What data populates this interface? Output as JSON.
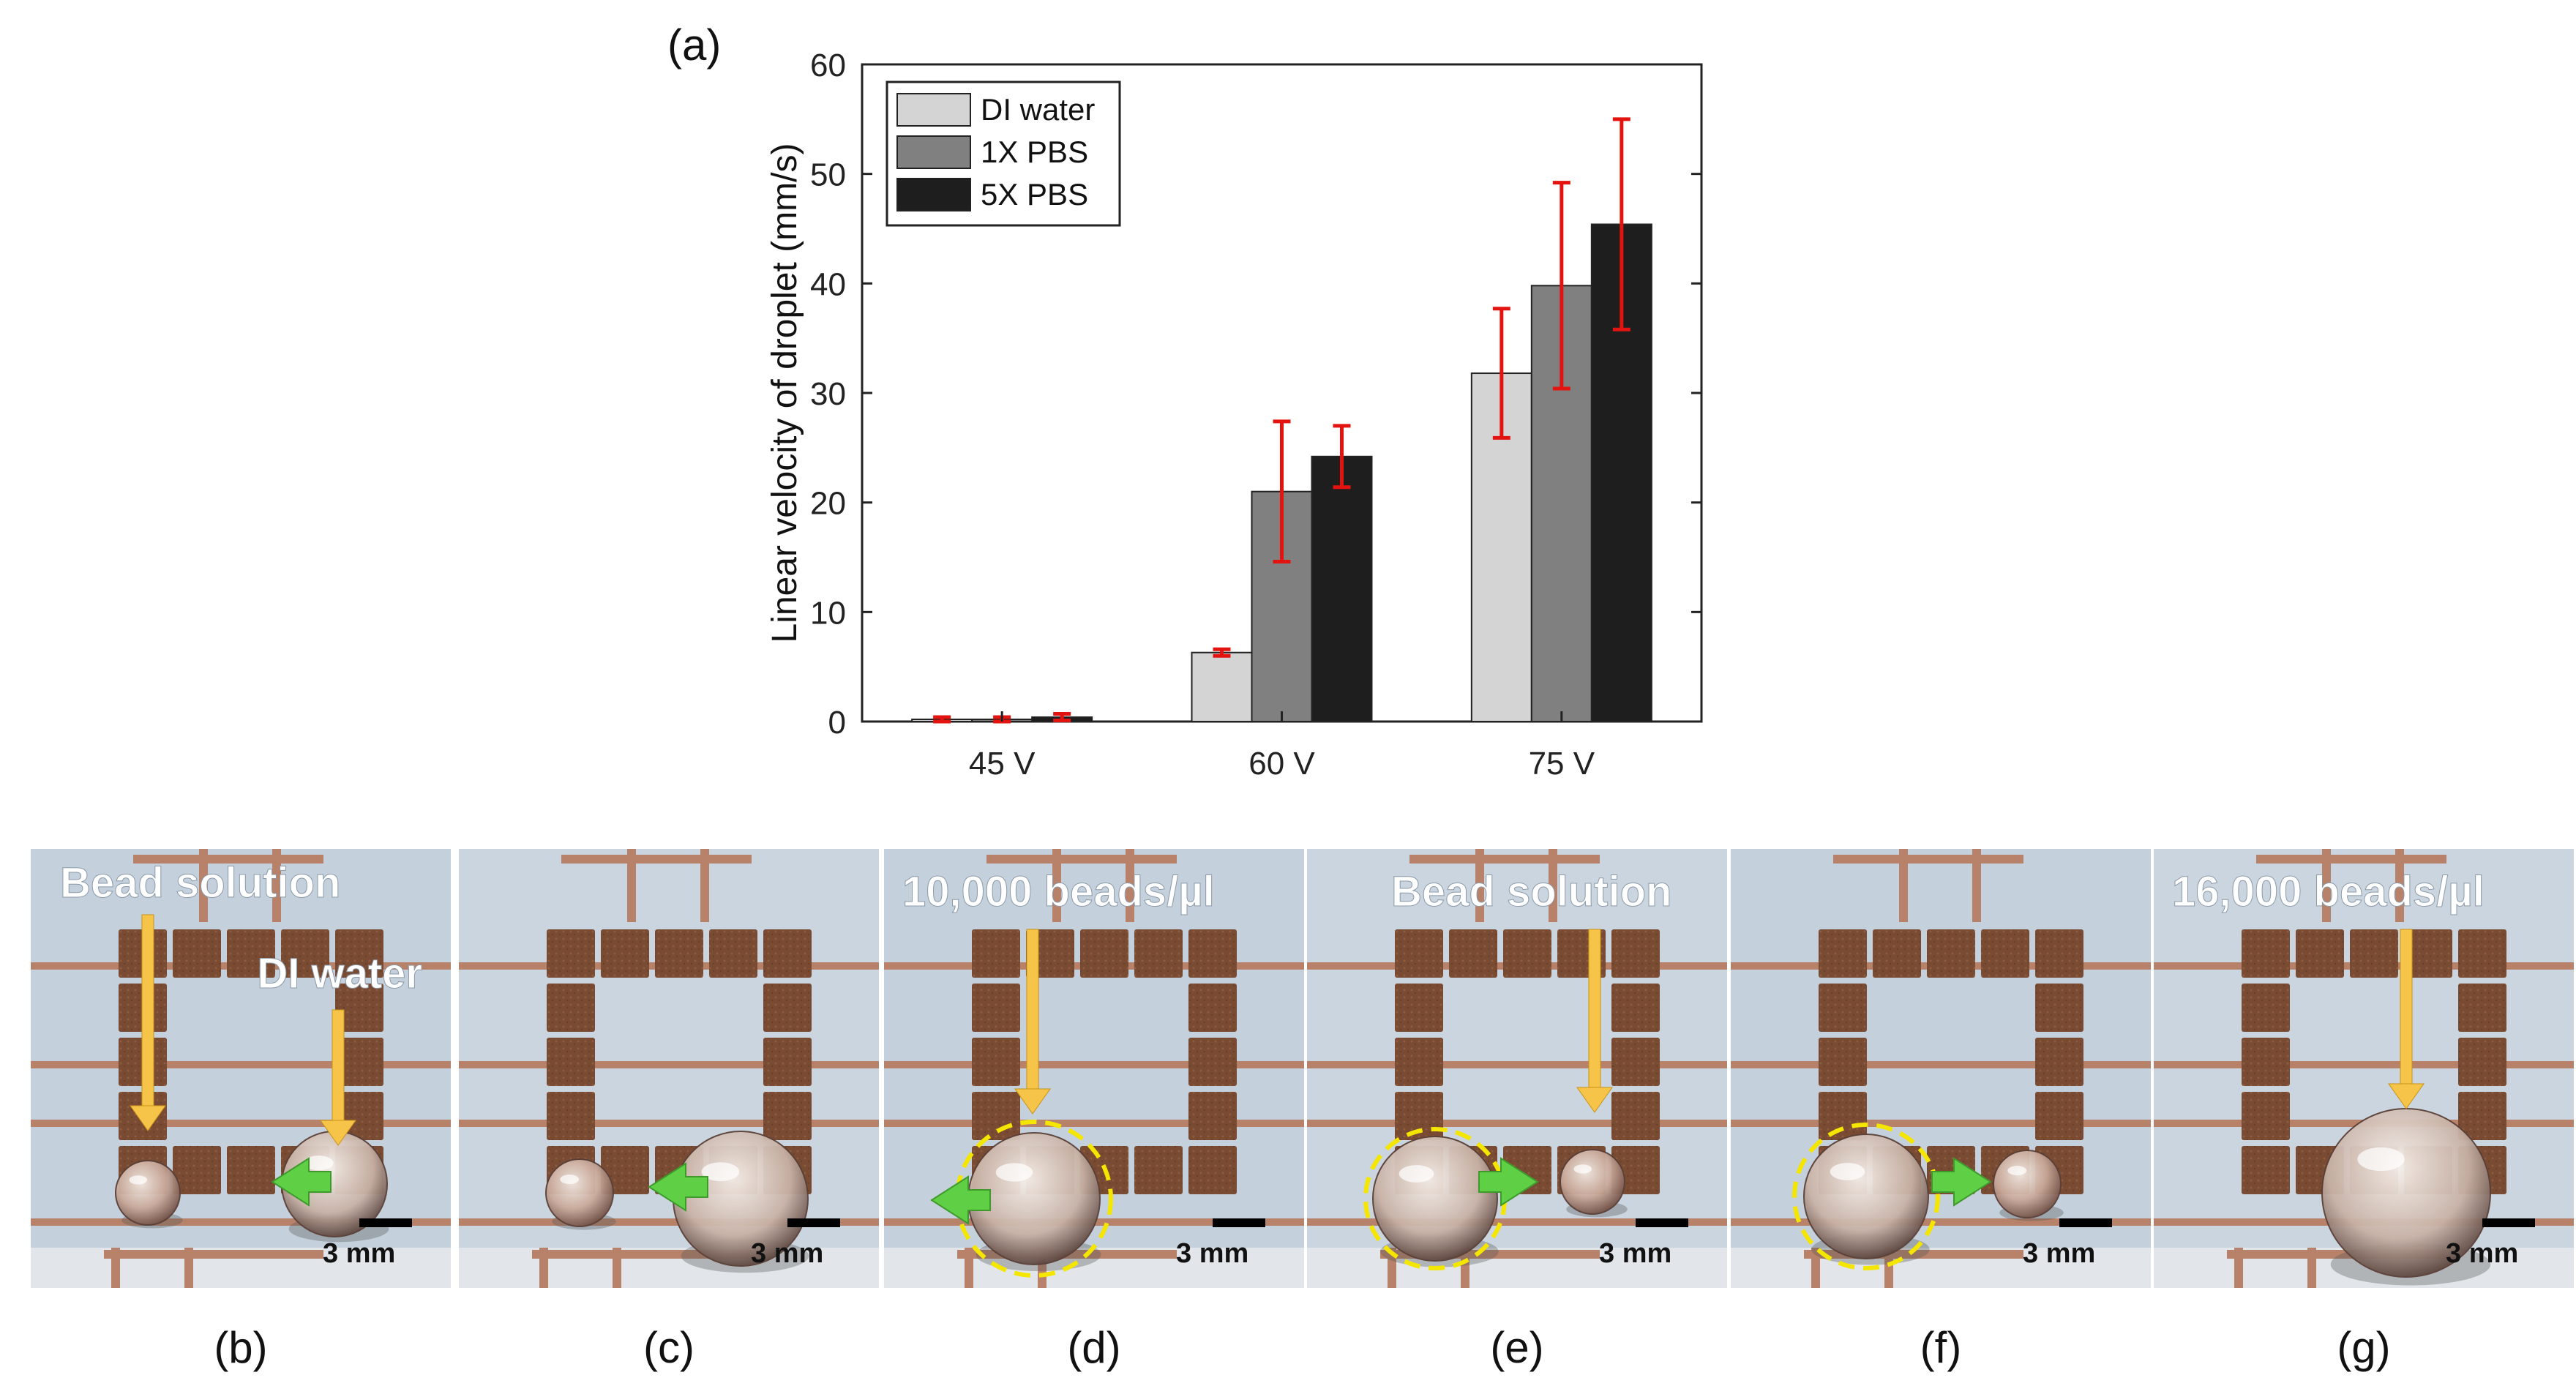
{
  "figure": {
    "panel_a_label": "(a)",
    "panels": [
      {
        "caption": "(b)",
        "annotations": [
          "Bead solution",
          "DI water"
        ],
        "scale": "3 mm"
      },
      {
        "caption": "(c)",
        "annotations": [],
        "scale": "3 mm"
      },
      {
        "caption": "(d)",
        "annotations": [
          "10,000 beads/µl"
        ],
        "scale": "3 mm"
      },
      {
        "caption": "(e)",
        "annotations": [
          "Bead solution"
        ],
        "scale": "3 mm"
      },
      {
        "caption": "(f)",
        "annotations": [],
        "scale": "3 mm"
      },
      {
        "caption": "(g)",
        "annotations": [
          "16,000 beads/µl"
        ],
        "scale": "3 mm"
      }
    ]
  },
  "chart_data": {
    "type": "bar",
    "title": "",
    "xlabel": "",
    "ylabel": "Linear velocity of droplet (mm/s)",
    "categories": [
      "45 V",
      "60 V",
      "75 V"
    ],
    "ylim": [
      0,
      60
    ],
    "yticks": [
      0,
      10,
      20,
      30,
      40,
      50,
      60
    ],
    "legend_position": "top-left",
    "series": [
      {
        "name": "DI water",
        "color": "#d4d4d4",
        "values": [
          0.2,
          6.3,
          31.8
        ],
        "errors": [
          0.2,
          0.3,
          5.9
        ]
      },
      {
        "name": "1X PBS",
        "color": "#808080",
        "values": [
          0.2,
          21.0,
          39.8
        ],
        "errors": [
          0.2,
          6.4,
          9.4
        ]
      },
      {
        "name": "5X PBS",
        "color": "#1e1e1e",
        "values": [
          0.4,
          24.2,
          45.4
        ],
        "errors": [
          0.3,
          2.8,
          9.6
        ]
      }
    ],
    "error_bar_color": "#e3140f"
  }
}
